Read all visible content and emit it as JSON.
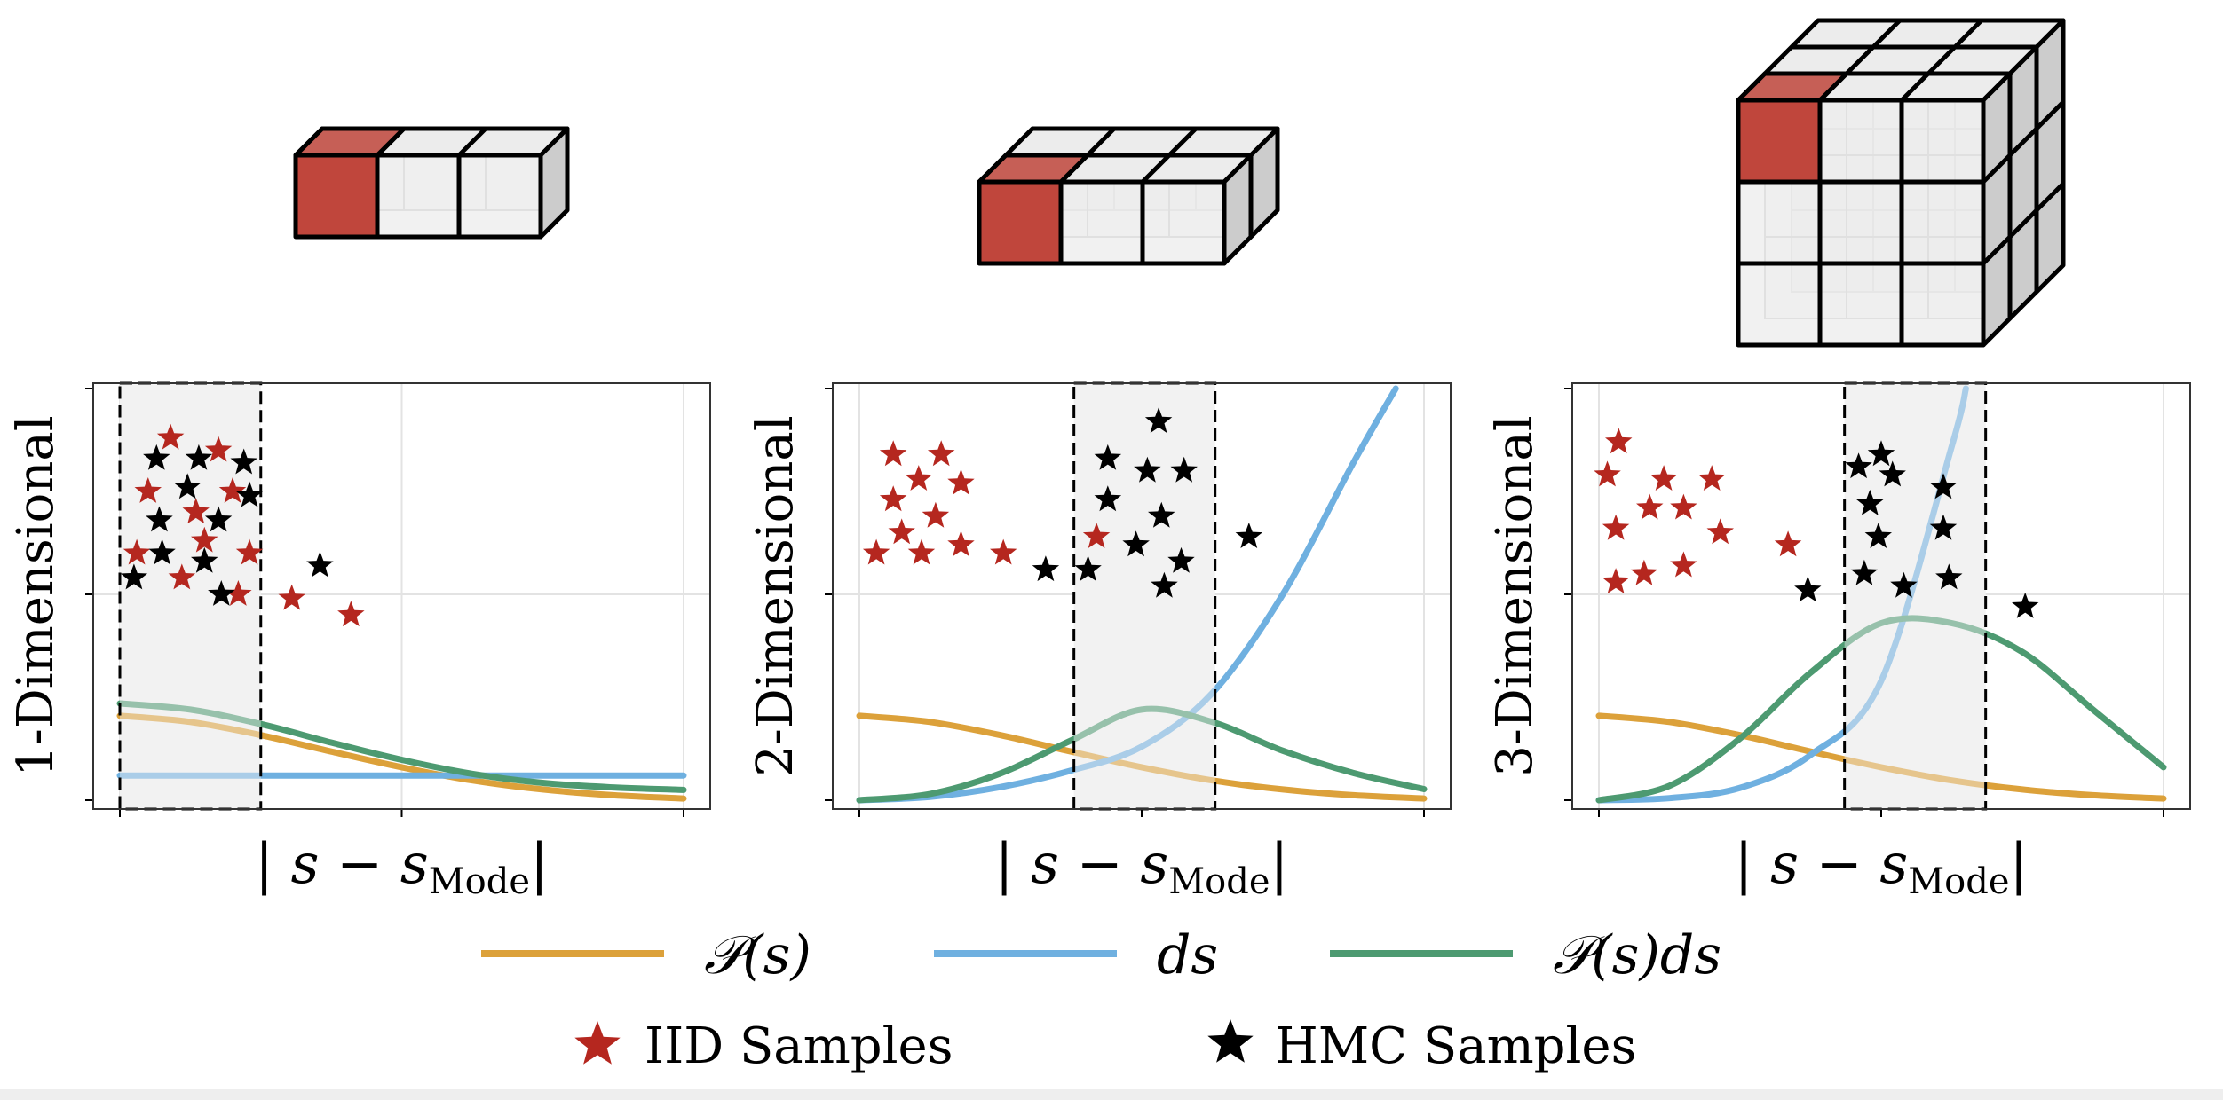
{
  "colors": {
    "p": "#dca13a",
    "ds": "#6fb0e0",
    "pds": "#4d9a71",
    "iid_star": "#b5271f",
    "hmc_star": "#000000",
    "cube_red": "#c0463c",
    "cube_face": "#ececec",
    "cube_side": "#cccccc",
    "shade": "#f2f2f2"
  },
  "chart_data": [
    {
      "type": "line",
      "ylabel": "1-Dimensional",
      "xlabel": "|s − s_Mode|",
      "cube_grid": [
        3,
        1,
        1
      ],
      "shade_range": [
        0.0,
        0.5
      ],
      "x_ticks": [
        0,
        1,
        2
      ],
      "xlim": [
        0,
        2
      ],
      "ylim": [
        0,
        1
      ],
      "series": [
        {
          "key": "p",
          "x": [
            0,
            0.25,
            0.5,
            0.75,
            1.0,
            1.25,
            1.5,
            1.75,
            2.0
          ],
          "y": [
            0.205,
            0.19,
            0.158,
            0.118,
            0.08,
            0.048,
            0.026,
            0.012,
            0.004
          ]
        },
        {
          "key": "ds",
          "x": [
            0,
            2.0
          ],
          "y": [
            0.06,
            0.06
          ]
        },
        {
          "key": "pds",
          "x": [
            0,
            0.25,
            0.5,
            0.75,
            1.0,
            1.25,
            1.5,
            1.75,
            2.0
          ],
          "y": [
            0.235,
            0.22,
            0.185,
            0.14,
            0.098,
            0.064,
            0.042,
            0.031,
            0.025
          ]
        }
      ],
      "iid_samples": [
        [
          0.18,
          0.88
        ],
        [
          0.35,
          0.85
        ],
        [
          0.1,
          0.75
        ],
        [
          0.4,
          0.75
        ],
        [
          0.27,
          0.7
        ],
        [
          0.3,
          0.63
        ],
        [
          0.06,
          0.6
        ],
        [
          0.46,
          0.6
        ],
        [
          0.22,
          0.54
        ],
        [
          0.42,
          0.5
        ],
        [
          0.61,
          0.49
        ],
        [
          0.82,
          0.45
        ]
      ],
      "hmc_samples": [
        [
          0.13,
          0.83
        ],
        [
          0.28,
          0.83
        ],
        [
          0.44,
          0.82
        ],
        [
          0.24,
          0.76
        ],
        [
          0.46,
          0.74
        ],
        [
          0.14,
          0.68
        ],
        [
          0.35,
          0.68
        ],
        [
          0.15,
          0.6
        ],
        [
          0.3,
          0.58
        ],
        [
          0.05,
          0.54
        ],
        [
          0.36,
          0.5
        ],
        [
          0.71,
          0.57
        ]
      ]
    },
    {
      "type": "line",
      "ylabel": "2-Dimensional",
      "xlabel": "|s − s_Mode|",
      "cube_grid": [
        3,
        1,
        2
      ],
      "shade_range": [
        0.76,
        1.26
      ],
      "x_ticks": [
        0,
        1,
        2
      ],
      "xlim": [
        0,
        2
      ],
      "ylim": [
        0,
        1
      ],
      "series": [
        {
          "key": "p",
          "x": [
            0,
            0.25,
            0.5,
            0.75,
            1.0,
            1.25,
            1.5,
            1.75,
            2.0
          ],
          "y": [
            0.205,
            0.19,
            0.158,
            0.118,
            0.08,
            0.048,
            0.026,
            0.012,
            0.004
          ]
        },
        {
          "key": "ds",
          "x": [
            0,
            0.25,
            0.5,
            0.75,
            1.0,
            1.25,
            1.5,
            1.75,
            1.9
          ],
          "y": [
            0.0,
            0.008,
            0.032,
            0.072,
            0.13,
            0.26,
            0.5,
            0.82,
            1.0
          ]
        },
        {
          "key": "pds",
          "x": [
            0,
            0.25,
            0.5,
            0.75,
            1.0,
            1.25,
            1.5,
            1.75,
            2.0
          ],
          "y": [
            0.0,
            0.015,
            0.065,
            0.145,
            0.22,
            0.19,
            0.12,
            0.066,
            0.027
          ]
        }
      ],
      "iid_samples": [
        [
          0.12,
          0.84
        ],
        [
          0.29,
          0.84
        ],
        [
          0.21,
          0.78
        ],
        [
          0.36,
          0.77
        ],
        [
          0.12,
          0.73
        ],
        [
          0.27,
          0.69
        ],
        [
          0.15,
          0.65
        ],
        [
          0.36,
          0.62
        ],
        [
          0.06,
          0.6
        ],
        [
          0.22,
          0.6
        ],
        [
          0.51,
          0.6
        ],
        [
          0.84,
          0.64
        ]
      ],
      "hmc_samples": [
        [
          1.06,
          0.92
        ],
        [
          0.88,
          0.83
        ],
        [
          1.02,
          0.8
        ],
        [
          1.15,
          0.8
        ],
        [
          0.88,
          0.73
        ],
        [
          1.07,
          0.69
        ],
        [
          0.98,
          0.62
        ],
        [
          1.14,
          0.58
        ],
        [
          0.66,
          0.56
        ],
        [
          0.81,
          0.56
        ],
        [
          1.08,
          0.52
        ],
        [
          1.38,
          0.64
        ]
      ]
    },
    {
      "type": "line",
      "ylabel": "3-Dimensional",
      "xlabel": "|s − s_Mode|",
      "cube_grid": [
        3,
        3,
        3
      ],
      "shade_range": [
        0.87,
        1.37
      ],
      "x_ticks": [
        0,
        1,
        2
      ],
      "xlim": [
        0,
        2
      ],
      "ylim": [
        0,
        1
      ],
      "series": [
        {
          "key": "p",
          "x": [
            0,
            0.25,
            0.5,
            0.75,
            1.0,
            1.25,
            1.5,
            1.75,
            2.0
          ],
          "y": [
            0.205,
            0.19,
            0.158,
            0.118,
            0.08,
            0.048,
            0.026,
            0.012,
            0.004
          ]
        },
        {
          "key": "ds",
          "x": [
            0,
            0.25,
            0.5,
            0.75,
            1.0,
            1.25,
            1.3
          ],
          "y": [
            0.0,
            0.005,
            0.03,
            0.11,
            0.29,
            0.86,
            1.0
          ]
        },
        {
          "key": "pds",
          "x": [
            0,
            0.25,
            0.5,
            0.75,
            1.0,
            1.25,
            1.5,
            1.75,
            2.0
          ],
          "y": [
            0.0,
            0.035,
            0.15,
            0.31,
            0.43,
            0.43,
            0.36,
            0.22,
            0.08
          ]
        }
      ],
      "iid_samples": [
        [
          0.07,
          0.87
        ],
        [
          0.03,
          0.79
        ],
        [
          0.23,
          0.78
        ],
        [
          0.4,
          0.78
        ],
        [
          0.18,
          0.71
        ],
        [
          0.3,
          0.71
        ],
        [
          0.06,
          0.66
        ],
        [
          0.43,
          0.65
        ],
        [
          0.67,
          0.62
        ],
        [
          0.3,
          0.57
        ],
        [
          0.16,
          0.55
        ],
        [
          0.06,
          0.53
        ]
      ],
      "hmc_samples": [
        [
          1.0,
          0.84
        ],
        [
          0.92,
          0.81
        ],
        [
          1.04,
          0.79
        ],
        [
          1.22,
          0.76
        ],
        [
          0.96,
          0.72
        ],
        [
          1.22,
          0.66
        ],
        [
          0.99,
          0.64
        ],
        [
          0.94,
          0.55
        ],
        [
          0.74,
          0.51
        ],
        [
          1.08,
          0.52
        ],
        [
          1.24,
          0.54
        ],
        [
          1.51,
          0.47
        ]
      ]
    }
  ],
  "legend": {
    "p": "𝒫(s)",
    "ds": "ds",
    "pds": "𝒫(s)ds",
    "iid": "IID Samples",
    "hmc": "HMC Samples"
  }
}
